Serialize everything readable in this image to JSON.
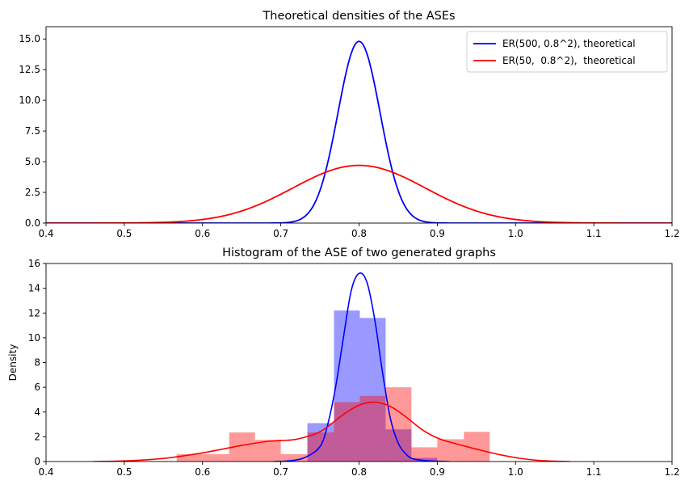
{
  "chart_data": [
    {
      "type": "line",
      "title": "Theoretical densities of the ASEs",
      "xlabel": "",
      "ylabel": "",
      "xlim": [
        0.4,
        1.2
      ],
      "ylim": [
        0,
        16
      ],
      "xticks": [
        "0.4",
        "0.5",
        "0.6",
        "0.7",
        "0.8",
        "0.9",
        "1.0",
        "1.1",
        "1.2"
      ],
      "yticks": [
        "0.0",
        "2.5",
        "5.0",
        "7.5",
        "10.0",
        "12.5",
        "15.0"
      ],
      "legend_position": "top-right",
      "grid": false,
      "series": [
        {
          "name": "ER(500, 0.8^2), theoretical",
          "color": "#0000ff",
          "kind": "normal",
          "mean": 0.8,
          "peak": 14.8
        },
        {
          "name": "ER(50,  0.8^2),  theoretical",
          "color": "#ff0000",
          "kind": "normal",
          "mean": 0.8,
          "peak": 4.7
        }
      ]
    },
    {
      "type": "bar",
      "title": "Histogram of the ASE of two generated graphs",
      "xlabel": "",
      "ylabel": "Density",
      "xlim": [
        0.4,
        1.2
      ],
      "ylim": [
        0,
        16
      ],
      "xticks": [
        "0.4",
        "0.5",
        "0.6",
        "0.7",
        "0.8",
        "0.9",
        "1.0",
        "1.1",
        "1.2"
      ],
      "yticks": [
        "0",
        "2",
        "4",
        "6",
        "8",
        "10",
        "12",
        "14",
        "16"
      ],
      "grid": false,
      "histograms": [
        {
          "color": "#0000ff",
          "opacity": 0.4,
          "bins": [
            [
              0.734,
              0.768,
              3.1
            ],
            [
              0.768,
              0.801,
              12.2
            ],
            [
              0.801,
              0.834,
              11.6
            ],
            [
              0.834,
              0.867,
              2.6
            ],
            [
              0.867,
              0.9,
              0.3
            ]
          ]
        },
        {
          "color": "#ff0000",
          "opacity": 0.4,
          "bins": [
            [
              0.567,
              0.6,
              0.6
            ],
            [
              0.6,
              0.634,
              0.6
            ],
            [
              0.634,
              0.667,
              2.35
            ],
            [
              0.667,
              0.7,
              1.75
            ],
            [
              0.7,
              0.734,
              0.6
            ],
            [
              0.734,
              0.768,
              2.35
            ],
            [
              0.768,
              0.801,
              4.8
            ],
            [
              0.801,
              0.834,
              5.3
            ],
            [
              0.834,
              0.867,
              6.0
            ],
            [
              0.867,
              0.9,
              1.15
            ],
            [
              0.9,
              0.934,
              1.8
            ],
            [
              0.934,
              0.967,
              2.4
            ]
          ]
        }
      ],
      "kde_series": [
        {
          "color": "#0000ff",
          "points": [
            [
              0.69,
              0.0
            ],
            [
              0.71,
              0.05
            ],
            [
              0.73,
              0.3
            ],
            [
              0.75,
              1.2
            ],
            [
              0.76,
              3.0
            ],
            [
              0.77,
              6.0
            ],
            [
              0.78,
              10.0
            ],
            [
              0.79,
              13.8
            ],
            [
              0.8,
              15.2
            ],
            [
              0.81,
              14.5
            ],
            [
              0.82,
              11.5
            ],
            [
              0.83,
              7.2
            ],
            [
              0.84,
              3.5
            ],
            [
              0.85,
              1.5
            ],
            [
              0.86,
              0.6
            ],
            [
              0.87,
              0.2
            ],
            [
              0.89,
              0.05
            ],
            [
              0.915,
              0.0
            ]
          ]
        },
        {
          "color": "#ff0000",
          "points": [
            [
              0.46,
              0.0
            ],
            [
              0.5,
              0.05
            ],
            [
              0.55,
              0.25
            ],
            [
              0.6,
              0.7
            ],
            [
              0.65,
              1.3
            ],
            [
              0.68,
              1.6
            ],
            [
              0.7,
              1.7
            ],
            [
              0.72,
              1.8
            ],
            [
              0.75,
              2.4
            ],
            [
              0.78,
              3.8
            ],
            [
              0.8,
              4.55
            ],
            [
              0.82,
              4.8
            ],
            [
              0.84,
              4.45
            ],
            [
              0.86,
              3.6
            ],
            [
              0.88,
              2.6
            ],
            [
              0.9,
              1.9
            ],
            [
              0.92,
              1.5
            ],
            [
              0.95,
              1.0
            ],
            [
              0.98,
              0.55
            ],
            [
              1.01,
              0.22
            ],
            [
              1.04,
              0.05
            ],
            [
              1.07,
              0.0
            ]
          ]
        }
      ]
    }
  ]
}
